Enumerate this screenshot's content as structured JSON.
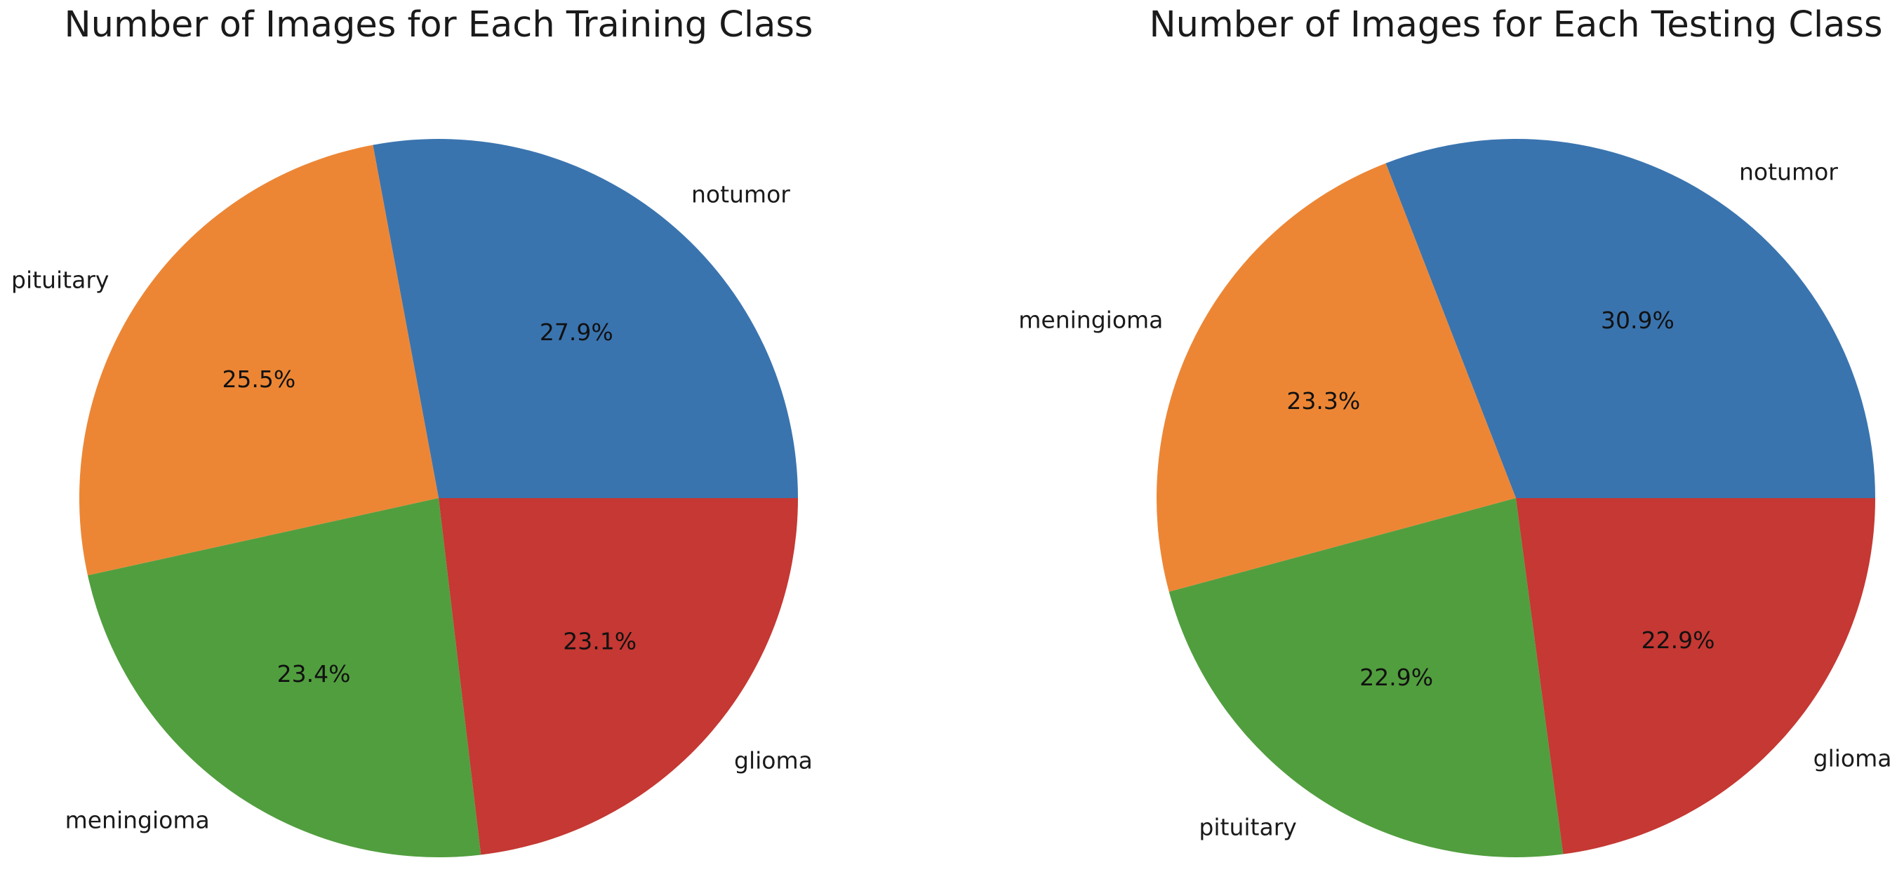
{
  "chart_data": [
    {
      "type": "pie",
      "title": "Number of Images for Each Training Class",
      "start_angle_deg": 0,
      "direction": "counterclockwise",
      "slices": [
        {
          "label": "notumor",
          "value": 27.9,
          "pct_label": "27.9%",
          "color": "#3a74af"
        },
        {
          "label": "pituitary",
          "value": 25.5,
          "pct_label": "25.5%",
          "color": "#ec8635"
        },
        {
          "label": "meningioma",
          "value": 23.4,
          "pct_label": "23.4%",
          "color": "#519e3e"
        },
        {
          "label": "glioma",
          "value": 23.1,
          "pct_label": "23.1%",
          "color": "#c53833"
        }
      ]
    },
    {
      "type": "pie",
      "title": "Number of Images for Each Testing Class",
      "start_angle_deg": 0,
      "direction": "counterclockwise",
      "slices": [
        {
          "label": "notumor",
          "value": 30.9,
          "pct_label": "30.9%",
          "color": "#3a74af"
        },
        {
          "label": "meningioma",
          "value": 23.3,
          "pct_label": "23.3%",
          "color": "#ec8635"
        },
        {
          "label": "pituitary",
          "value": 22.9,
          "pct_label": "22.9%",
          "color": "#519e3e"
        },
        {
          "label": "glioma",
          "value": 22.9,
          "pct_label": "22.9%",
          "color": "#c53833"
        }
      ]
    }
  ]
}
